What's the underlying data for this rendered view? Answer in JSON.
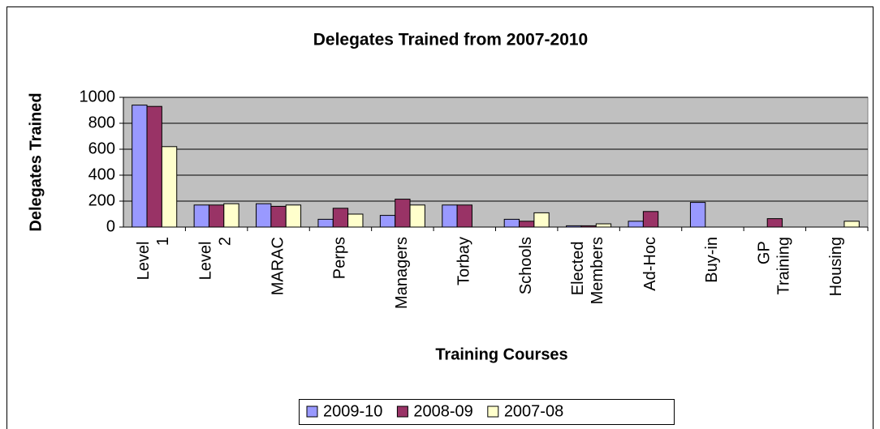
{
  "chart_data": {
    "type": "bar",
    "title": "Delegates Trained from 2007-2010",
    "x_label": "Training Courses",
    "y_label": "Delegates Trained",
    "categories": [
      "Level 1",
      "Level 2",
      "MARAC",
      "Perps",
      "Managers",
      "Torbay",
      "Schools",
      "Elected Members",
      "Ad-Hoc",
      "Buy-in",
      "GP Training",
      "Housing"
    ],
    "series": [
      {
        "name": "2009-10",
        "color": "#9999ff",
        "values": [
          940,
          170,
          180,
          60,
          90,
          170,
          60,
          10,
          45,
          190,
          0,
          0
        ]
      },
      {
        "name": "2008-09",
        "color": "#993366",
        "values": [
          930,
          170,
          160,
          145,
          215,
          170,
          45,
          10,
          120,
          0,
          65,
          0
        ]
      },
      {
        "name": "2007-08",
        "color": "#ffffcc",
        "values": [
          620,
          180,
          170,
          100,
          170,
          0,
          110,
          25,
          0,
          0,
          0,
          45
        ]
      }
    ],
    "ylim": [
      0,
      1000
    ],
    "yticks": [
      0,
      200,
      400,
      600,
      800,
      1000
    ],
    "grid": true,
    "legend": "bottom"
  }
}
